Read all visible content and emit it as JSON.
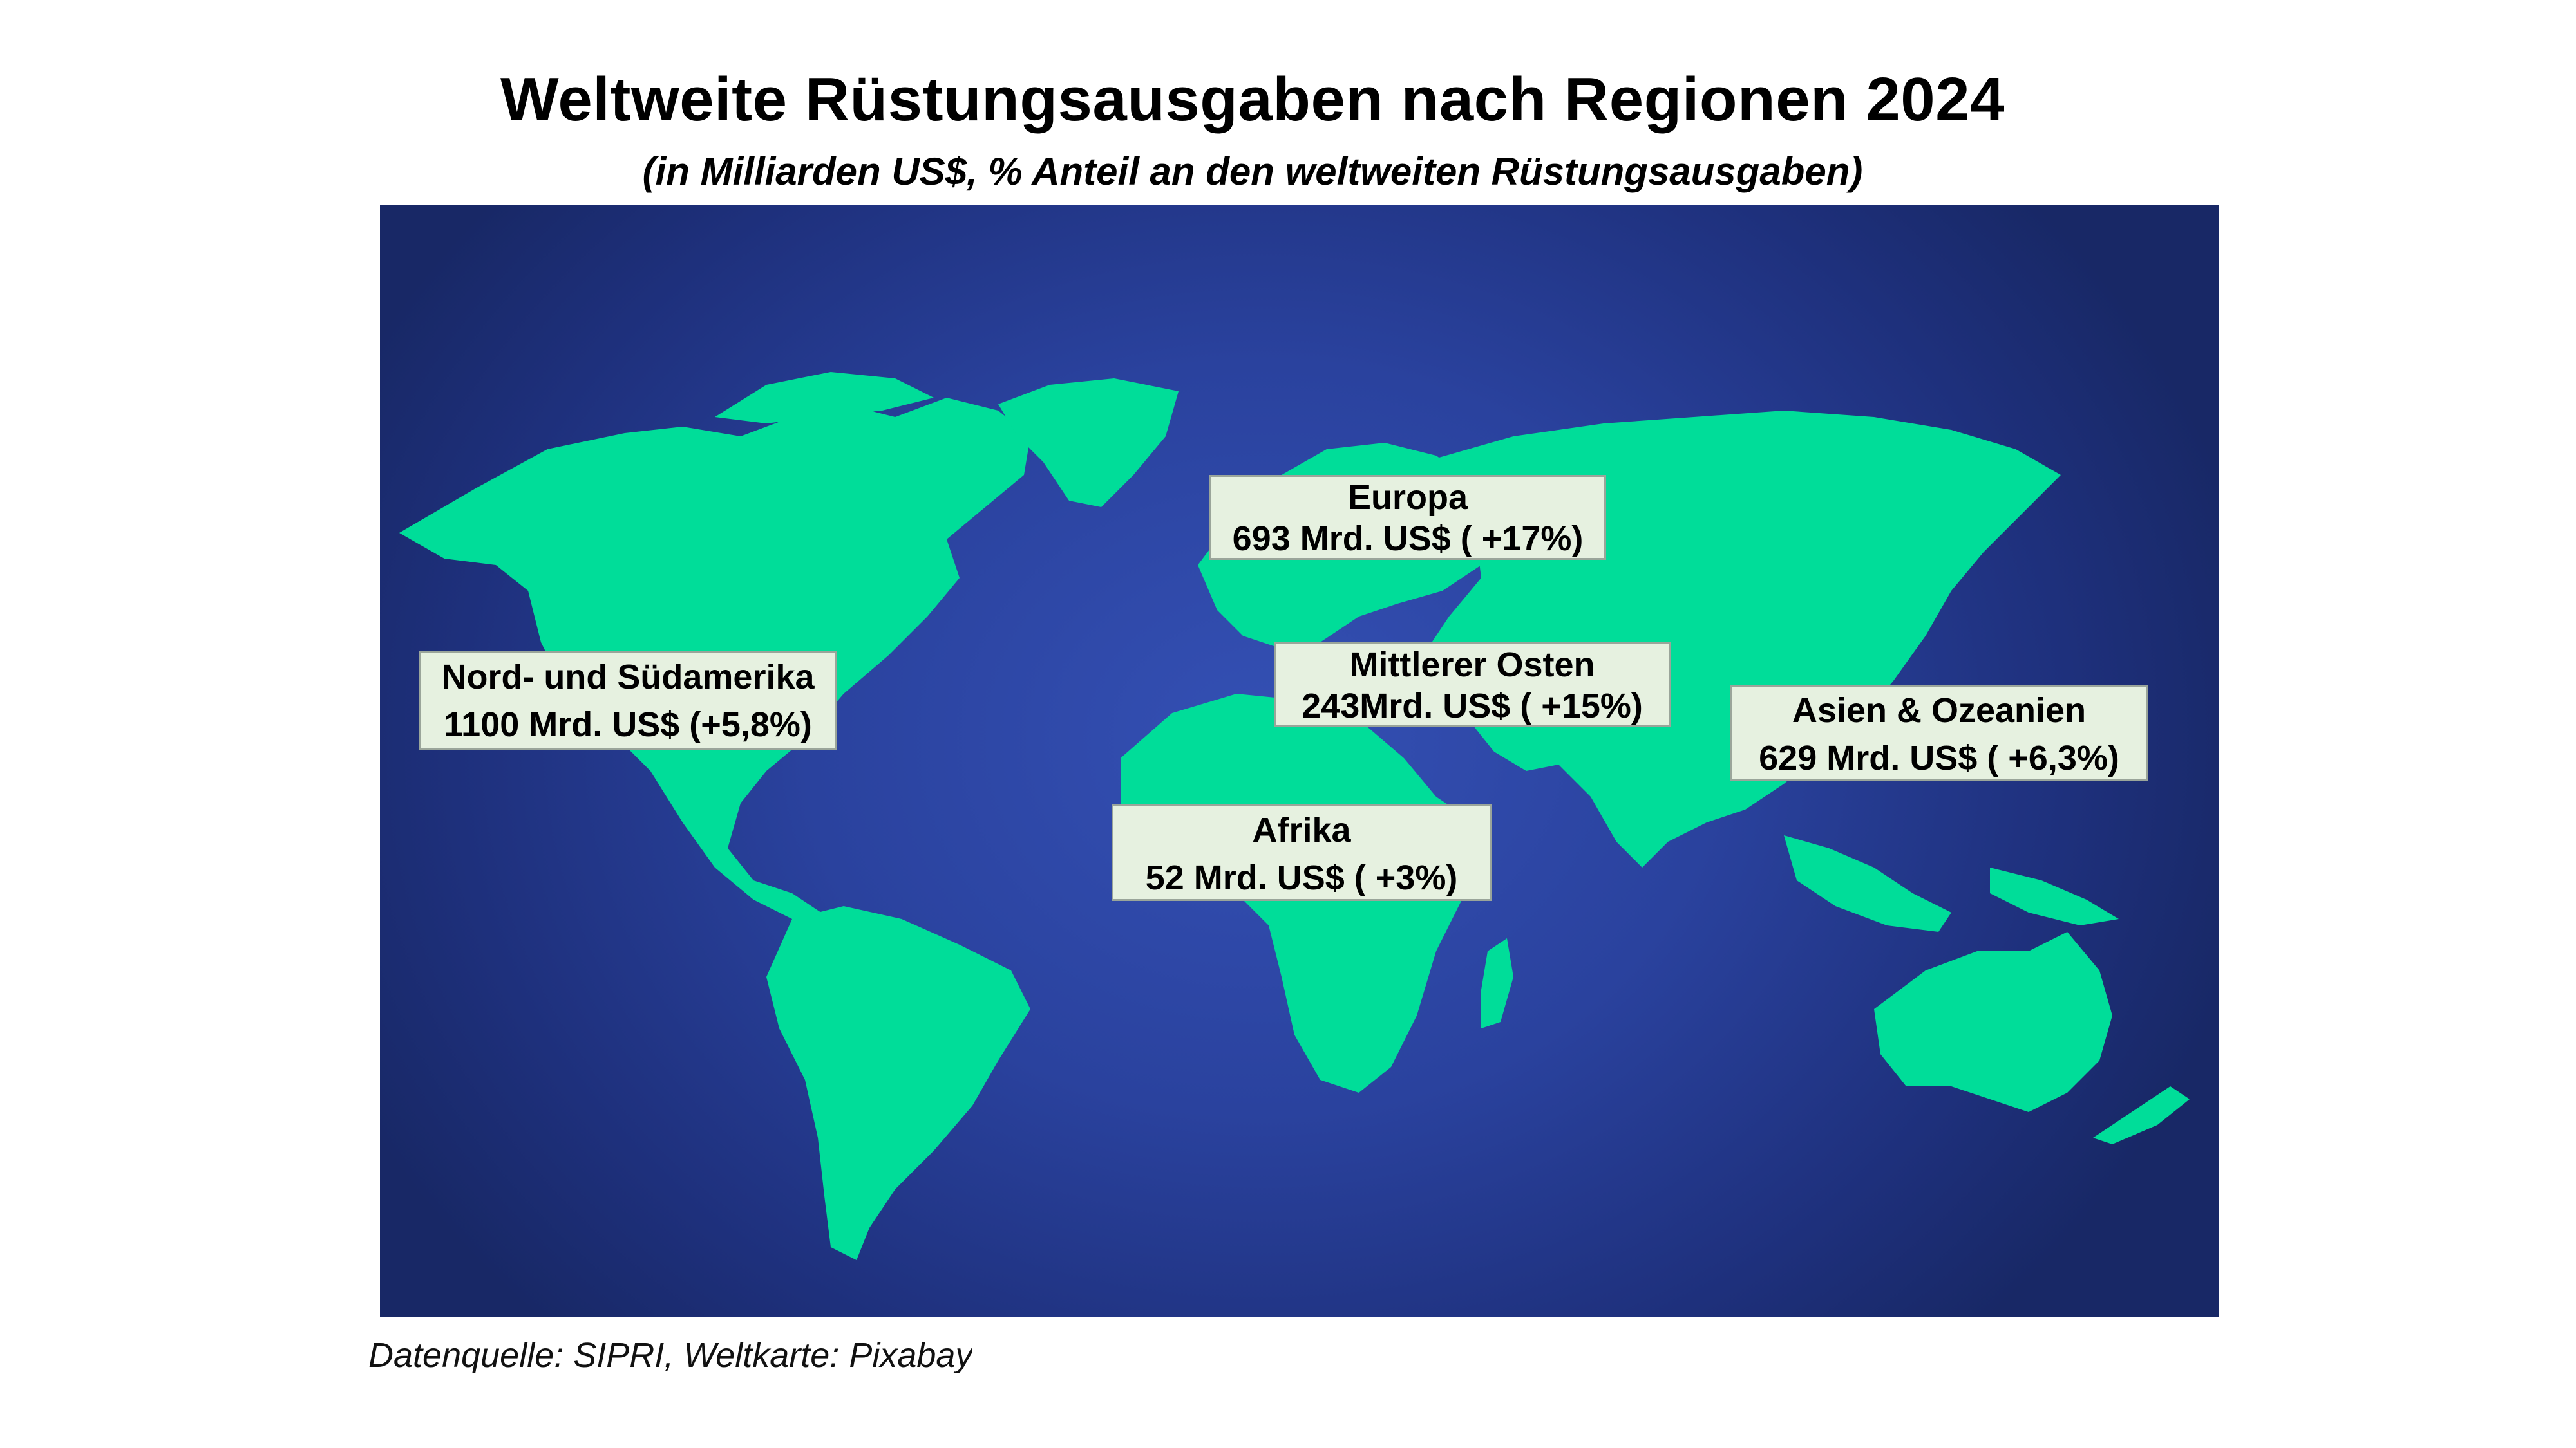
{
  "header": {
    "title": "Weltweite Rüstungsausgaben nach Regionen 2024",
    "subtitle": "(in Milliarden US$, % Anteil an den weltweiten Rüstungsausgaben)"
  },
  "regions": [
    {
      "name": "Nord- und Südamerika",
      "value_text": "1100 Mrd. US$ (+5,8%)",
      "value": 1100,
      "change_pct": 5.8
    },
    {
      "name": "Europa",
      "value_text": "693 Mrd. US$ ( +17%)",
      "value": 693,
      "change_pct": 17
    },
    {
      "name": "Mittlerer Osten",
      "value_text": "243Mrd. US$ ( +15%)",
      "value": 243,
      "change_pct": 15
    },
    {
      "name": "Asien & Ozeanien",
      "value_text": "629 Mrd. US$ ( +6,3%)",
      "value": 629,
      "change_pct": 6.3
    },
    {
      "name": "Afrika",
      "value_text": "52 Mrd. US$ ( +3%)",
      "value": 52,
      "change_pct": 3
    }
  ],
  "source": "Datenquelle: SIPRI, Weltkarte: Pixabay",
  "colors": {
    "ocean": "#2a429e",
    "land": "#00dd99",
    "label_bg": "#e6f1e0"
  }
}
